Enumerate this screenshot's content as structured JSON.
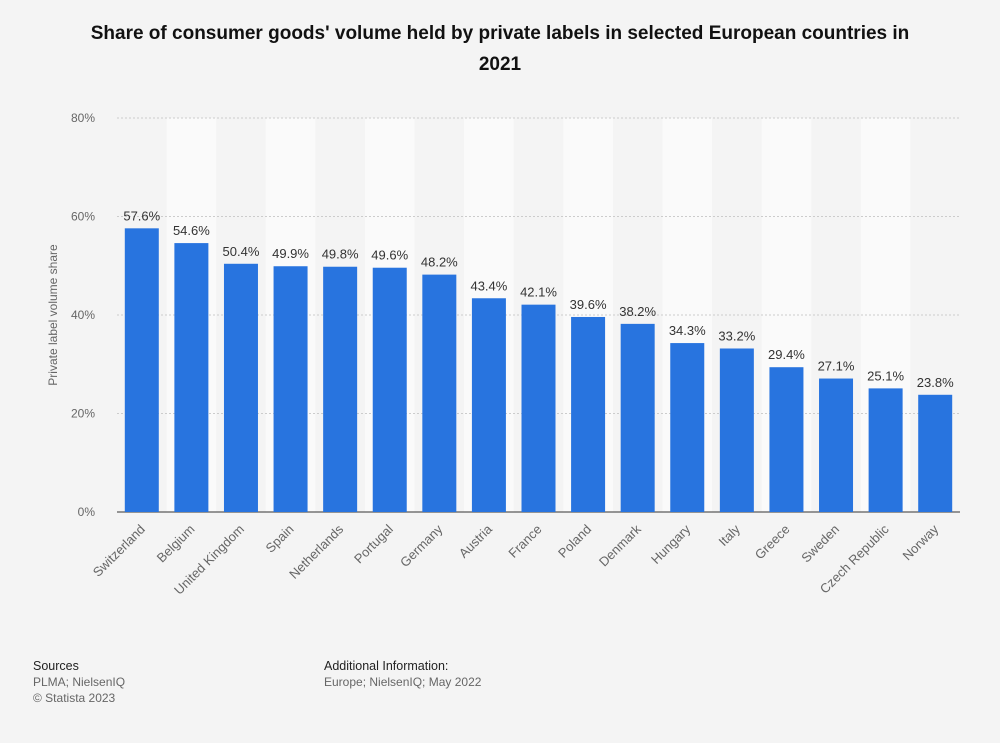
{
  "chart_data": {
    "type": "bar",
    "title": "Share of consumer goods' volume held by private labels in selected European countries in 2021",
    "xlabel": "",
    "ylabel": "Private label volume share",
    "categories": [
      "Switzerland",
      "Belgium",
      "United Kingdom",
      "Spain",
      "Netherlands",
      "Portugal",
      "Germany",
      "Austria",
      "France",
      "Poland",
      "Denmark",
      "Hungary",
      "Italy",
      "Greece",
      "Sweden",
      "Czech Republic",
      "Norway"
    ],
    "values": [
      57.6,
      54.6,
      50.4,
      49.9,
      49.8,
      49.6,
      48.2,
      43.4,
      42.1,
      39.6,
      38.2,
      34.3,
      33.2,
      29.4,
      27.1,
      25.1,
      23.8
    ],
    "data_labels": [
      "57.6%",
      "54.6%",
      "50.4%",
      "49.9%",
      "49.8%",
      "49.6%",
      "48.2%",
      "43.4%",
      "42.1%",
      "39.6%",
      "38.2%",
      "34.3%",
      "33.2%",
      "29.4%",
      "27.1%",
      "25.1%",
      "23.8%"
    ],
    "ylim": [
      0,
      80
    ],
    "yticks": [
      0,
      20,
      40,
      60,
      80
    ],
    "ytick_labels": [
      "0%",
      "20%",
      "40%",
      "60%",
      "80%"
    ],
    "grid": true,
    "colors": {
      "bar": "#2874df",
      "background": "#f4f4f4",
      "band": "#fafafa",
      "grid": "#cccccc"
    }
  },
  "footer": {
    "sources_heading": "Sources",
    "sources_line1": "PLMA; NielsenIQ",
    "sources_line2": "© Statista 2023",
    "additional_heading": "Additional Information:",
    "additional_text": "Europe; NielsenIQ; May 2022"
  }
}
